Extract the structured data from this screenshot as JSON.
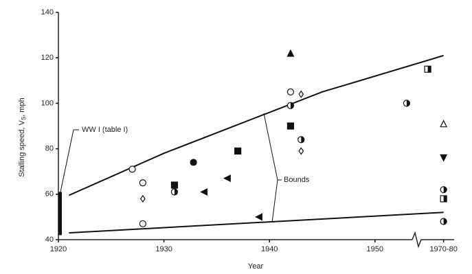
{
  "chart_data": {
    "type": "scatter",
    "xlabel": "Year",
    "ylabel": [
      "Stalling speed, V",
      "S",
      ", mph"
    ],
    "xlim": [
      1920,
      1957.5
    ],
    "ylim": [
      40,
      140
    ],
    "xticks": [
      1920,
      1930,
      1940,
      1950,
      {
        "value": 1956.5,
        "label": "1970-80"
      }
    ],
    "yticks": [
      40,
      60,
      80,
      100,
      120,
      140
    ],
    "color": "#111111",
    "ww1": {
      "label": "WW I (table I)",
      "x": 1920,
      "low": 42,
      "high": 61
    },
    "bounds": {
      "label": "Bounds",
      "upper": {
        "x": [
          1921,
          1930,
          1940,
          1945,
          1956.5
        ],
        "values": [
          59.5,
          78,
          96,
          105,
          121
        ]
      },
      "lower": {
        "x": [
          1921,
          1956.5
        ],
        "values": [
          43,
          52
        ]
      }
    },
    "points": [
      {
        "x": 1927,
        "y": 71,
        "marker": "circle-open"
      },
      {
        "x": 1928,
        "y": 65,
        "marker": "circle-open"
      },
      {
        "x": 1928,
        "y": 58,
        "marker": "diamond-open"
      },
      {
        "x": 1928,
        "y": 47,
        "marker": "circle-open"
      },
      {
        "x": 1931,
        "y": 64,
        "marker": "square-filled"
      },
      {
        "x": 1931,
        "y": 61,
        "marker": "circle-half"
      },
      {
        "x": 1932.8,
        "y": 74,
        "marker": "circle-filled"
      },
      {
        "x": 1933.8,
        "y": 61,
        "marker": "triangle-left-filled"
      },
      {
        "x": 1936,
        "y": 67,
        "marker": "triangle-left-filled"
      },
      {
        "x": 1937,
        "y": 79,
        "marker": "square-filled"
      },
      {
        "x": 1939,
        "y": 50,
        "marker": "triangle-left-filled"
      },
      {
        "x": 1942,
        "y": 122,
        "marker": "triangle-up-filled"
      },
      {
        "x": 1942,
        "y": 105,
        "marker": "circle-open"
      },
      {
        "x": 1943,
        "y": 104,
        "marker": "diamond-open"
      },
      {
        "x": 1942,
        "y": 99,
        "marker": "circle-half"
      },
      {
        "x": 1942,
        "y": 90,
        "marker": "square-filled"
      },
      {
        "x": 1943,
        "y": 84,
        "marker": "circle-half"
      },
      {
        "x": 1943,
        "y": 79,
        "marker": "diamond-open"
      },
      {
        "x": 1953,
        "y": 100,
        "marker": "circle-half"
      },
      {
        "x": 1955,
        "y": 115,
        "marker": "square-half"
      },
      {
        "x": 1956.5,
        "y": 91,
        "marker": "triangle-up-open"
      },
      {
        "x": 1956.5,
        "y": 76,
        "marker": "triangle-down-filled"
      },
      {
        "x": 1956.5,
        "y": 62,
        "marker": "circle-half"
      },
      {
        "x": 1956.5,
        "y": 58,
        "marker": "square-half"
      },
      {
        "x": 1956.5,
        "y": 48,
        "marker": "circle-half"
      }
    ]
  }
}
